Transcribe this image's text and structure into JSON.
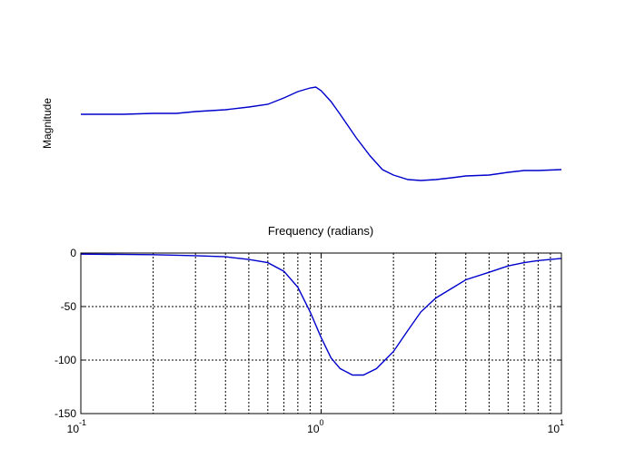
{
  "chart_data": [
    {
      "type": "line",
      "ylabel": "Magnitude",
      "xlabel": "Frequency (radians)",
      "xscale": "log",
      "xlim": [
        0.1,
        10
      ],
      "axes_visible": false,
      "grid": false,
      "color": "#0000cc",
      "series": [
        {
          "x": [
            0.1,
            0.15,
            0.2,
            0.25,
            0.3,
            0.4,
            0.5,
            0.6,
            0.7,
            0.8,
            0.9,
            0.95,
            1.0,
            1.1,
            1.2,
            1.4,
            1.6,
            1.8,
            2.0,
            2.3,
            2.6,
            3.0,
            3.5,
            4.0,
            5.0,
            6.0,
            7.0,
            8.0,
            10.0
          ],
          "y": [
            126,
            126,
            125,
            125,
            123,
            121,
            118,
            115,
            108,
            101,
            97,
            96,
            100,
            112,
            126,
            152,
            172,
            187,
            193,
            198,
            199,
            198,
            196,
            194,
            193,
            190,
            188,
            188,
            187
          ]
        }
      ]
    },
    {
      "type": "line",
      "xscale": "log",
      "xlim": [
        0.1,
        10
      ],
      "ylim": [
        -150,
        0
      ],
      "grid": true,
      "color": "#0000cc",
      "yticks": [
        {
          "v": 0,
          "label": "0"
        },
        {
          "v": -50,
          "label": "-50"
        },
        {
          "v": -100,
          "label": "-100"
        },
        {
          "v": -150,
          "label": "-150"
        }
      ],
      "xticks": [
        {
          "v": 0.1,
          "base": "10",
          "exp": "-1"
        },
        {
          "v": 1,
          "base": "10",
          "exp": "0"
        },
        {
          "v": 10,
          "base": "10",
          "exp": "1"
        }
      ],
      "series": [
        {
          "x": [
            0.1,
            0.2,
            0.3,
            0.4,
            0.5,
            0.6,
            0.7,
            0.8,
            0.9,
            1.0,
            1.1,
            1.2,
            1.35,
            1.5,
            1.7,
            2.0,
            2.3,
            2.6,
            3.0,
            3.5,
            4.0,
            5.0,
            6.0,
            7.0,
            8.0,
            10.0
          ],
          "y": [
            -1,
            -1.5,
            -2.5,
            -3.5,
            -6,
            -9,
            -17,
            -32,
            -55,
            -79,
            -98,
            -108,
            -114,
            -114,
            -108,
            -92,
            -72,
            -55,
            -42,
            -33,
            -25,
            -18,
            -12,
            -9,
            -7,
            -5
          ]
        }
      ]
    }
  ]
}
